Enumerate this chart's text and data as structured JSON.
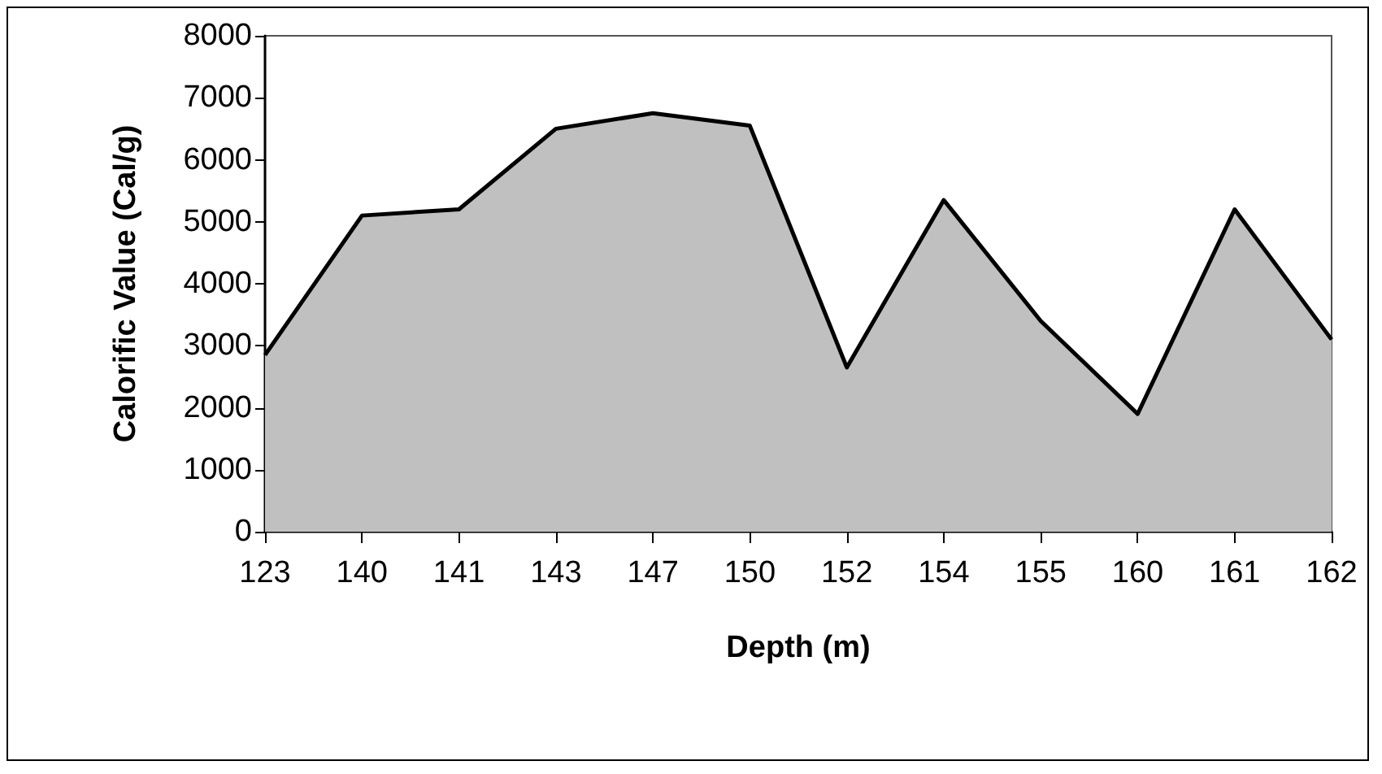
{
  "chart_data": {
    "type": "area",
    "xlabel": "Depth (m)",
    "ylabel": "Calorific Value (Cal/g)",
    "categories": [
      "123",
      "140",
      "141",
      "143",
      "147",
      "150",
      "152",
      "154",
      "155",
      "160",
      "161",
      "162"
    ],
    "series": [
      {
        "color": "#c0c0c0",
        "values": [
          2850,
          5100,
          5200,
          6500,
          6750,
          6550,
          2650,
          5350,
          3400,
          1900,
          5200,
          3100
        ]
      }
    ],
    "ylim": [
      0,
      8000
    ],
    "yticks": [
      0,
      1000,
      2000,
      3000,
      4000,
      5000,
      6000,
      7000,
      8000
    ],
    "grid": false
  }
}
